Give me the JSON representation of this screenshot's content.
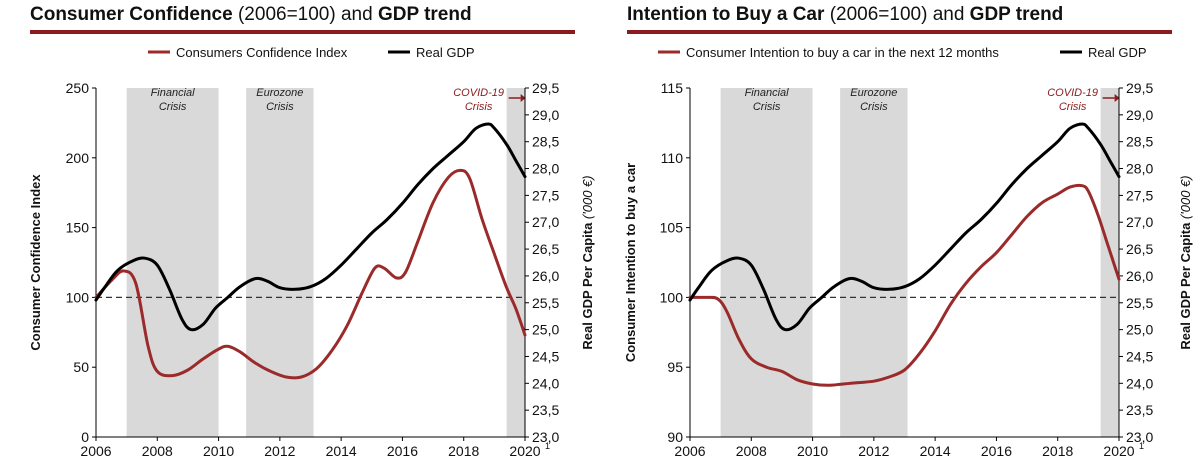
{
  "colors": {
    "accent": "#8b1c1c",
    "confidence": "#9b2a2a",
    "gdp": "#000000",
    "band": "#d9d9d9",
    "covid_text": "#8b1c1c"
  },
  "charts": [
    {
      "title_bold_1": "Consumer Confidence",
      "title_normal": "(2006=100)",
      "title_and": "and",
      "title_bold_2": "GDP trend",
      "legend": [
        "Consumers Confidence Index",
        "Real GDP"
      ]
    },
    {
      "title_bold_1": "Intention to Buy a Car",
      "title_normal": "(2006=100)",
      "title_and": "and",
      "title_bold_2": "GDP trend",
      "legend": [
        "Consumer Intention to buy a car in the next 12 months",
        "Real GDP"
      ]
    }
  ],
  "chart_data": [
    {
      "type": "line",
      "ylabel": "Consumer Confidence Index",
      "y2label": "Real GDP Per Capita",
      "y2label_unit": "('000 €)",
      "xlim": [
        2006,
        2020
      ],
      "ylim": [
        0,
        250
      ],
      "y2lim": [
        23.0,
        29.5
      ],
      "x_ticks": [
        "2006",
        "2008",
        "2010",
        "2012",
        "2014",
        "2016",
        "2018",
        "2020"
      ],
      "x_last_tick_superscript": "1",
      "y_ticks": [
        0,
        50,
        100,
        150,
        200,
        250
      ],
      "y2_ticks": [
        "23,0",
        "23,5",
        "24,0",
        "24,5",
        "25,0",
        "25,5",
        "26,0",
        "26,5",
        "27,0",
        "27,5",
        "28,0",
        "28,5",
        "29,0",
        "29,5"
      ],
      "reference_line_y": 100,
      "bands": [
        {
          "from": 2007.0,
          "to": 2010.0,
          "label": [
            "Financial",
            "Crisis"
          ]
        },
        {
          "from": 2010.9,
          "to": 2013.1,
          "label": [
            "Eurozone",
            "Crisis"
          ]
        },
        {
          "from": 2019.4,
          "to": 2020.0,
          "label": [
            "COVID-19",
            "Crisis"
          ]
        }
      ],
      "series": [
        {
          "name": "Consumers Confidence Index",
          "axis": "left",
          "points": [
            [
              2006,
              100
            ],
            [
              2006.5,
              112
            ],
            [
              2006.9,
              119
            ],
            [
              2007.3,
              110
            ],
            [
              2007.7,
              65
            ],
            [
              2008.0,
              47
            ],
            [
              2008.5,
              44
            ],
            [
              2009.0,
              48
            ],
            [
              2009.5,
              56
            ],
            [
              2010.0,
              63
            ],
            [
              2010.3,
              65
            ],
            [
              2010.7,
              61
            ],
            [
              2011.2,
              53
            ],
            [
              2011.7,
              47
            ],
            [
              2012.2,
              43
            ],
            [
              2012.7,
              43
            ],
            [
              2013.2,
              49
            ],
            [
              2013.7,
              62
            ],
            [
              2014.2,
              80
            ],
            [
              2014.7,
              104
            ],
            [
              2015.1,
              121
            ],
            [
              2015.4,
              121
            ],
            [
              2015.8,
              114
            ],
            [
              2016.1,
              118
            ],
            [
              2016.5,
              140
            ],
            [
              2017.0,
              168
            ],
            [
              2017.5,
              186
            ],
            [
              2017.9,
              191
            ],
            [
              2018.2,
              185
            ],
            [
              2018.6,
              156
            ],
            [
              2019.0,
              131
            ],
            [
              2019.4,
              107
            ],
            [
              2019.7,
              92
            ],
            [
              2020.0,
              73
            ]
          ]
        },
        {
          "name": "Real GDP",
          "axis": "right",
          "points": [
            [
              2006,
              25.55
            ],
            [
              2006.3,
              25.8
            ],
            [
              2006.7,
              26.1
            ],
            [
              2007.2,
              26.28
            ],
            [
              2007.6,
              26.33
            ],
            [
              2008.0,
              26.2
            ],
            [
              2008.4,
              25.75
            ],
            [
              2008.8,
              25.2
            ],
            [
              2009.1,
              25.0
            ],
            [
              2009.5,
              25.1
            ],
            [
              2009.9,
              25.4
            ],
            [
              2010.3,
              25.6
            ],
            [
              2010.7,
              25.8
            ],
            [
              2011.2,
              25.95
            ],
            [
              2011.6,
              25.9
            ],
            [
              2012.0,
              25.78
            ],
            [
              2012.5,
              25.75
            ],
            [
              2013.0,
              25.8
            ],
            [
              2013.5,
              25.95
            ],
            [
              2014.0,
              26.2
            ],
            [
              2014.5,
              26.5
            ],
            [
              2015.0,
              26.8
            ],
            [
              2015.5,
              27.05
            ],
            [
              2016.0,
              27.35
            ],
            [
              2016.5,
              27.7
            ],
            [
              2017.0,
              28.0
            ],
            [
              2017.5,
              28.25
            ],
            [
              2018.0,
              28.5
            ],
            [
              2018.4,
              28.75
            ],
            [
              2018.8,
              28.83
            ],
            [
              2019.0,
              28.75
            ],
            [
              2019.4,
              28.45
            ],
            [
              2019.7,
              28.15
            ],
            [
              2020.0,
              27.85
            ]
          ]
        }
      ]
    },
    {
      "type": "line",
      "ylabel": "Consumer Intention to buy a car",
      "y2label": "Real GDP Per Capita",
      "y2label_unit": "('000 €)",
      "xlim": [
        2006,
        2020
      ],
      "ylim": [
        90,
        115
      ],
      "y2lim": [
        23.0,
        29.5
      ],
      "x_ticks": [
        "2006",
        "2008",
        "2010",
        "2012",
        "2014",
        "2016",
        "2018",
        "2020"
      ],
      "x_last_tick_superscript": "1",
      "y_ticks": [
        90,
        95,
        100,
        105,
        110,
        115
      ],
      "y2_ticks": [
        "23,0",
        "23,5",
        "24,0",
        "24,5",
        "25,0",
        "25,5",
        "26,0",
        "26,5",
        "27,0",
        "27,5",
        "28,0",
        "28,5",
        "29,0",
        "29,5"
      ],
      "reference_line_y": 100,
      "bands": [
        {
          "from": 2007.0,
          "to": 2010.0,
          "label": [
            "Financial",
            "Crisis"
          ]
        },
        {
          "from": 2010.9,
          "to": 2013.1,
          "label": [
            "Eurozone",
            "Crisis"
          ]
        },
        {
          "from": 2019.4,
          "to": 2020.0,
          "label": [
            "COVID-19",
            "Crisis"
          ]
        }
      ],
      "series": [
        {
          "name": "Consumer Intention to buy a car in the next 12 months",
          "axis": "left",
          "points": [
            [
              2006,
              100.0
            ],
            [
              2006.5,
              100.0
            ],
            [
              2006.9,
              99.9
            ],
            [
              2007.2,
              99.0
            ],
            [
              2007.6,
              97.0
            ],
            [
              2008.0,
              95.6
            ],
            [
              2008.5,
              95.0
            ],
            [
              2009.0,
              94.7
            ],
            [
              2009.5,
              94.1
            ],
            [
              2010.0,
              93.8
            ],
            [
              2010.5,
              93.7
            ],
            [
              2011.0,
              93.8
            ],
            [
              2011.5,
              93.9
            ],
            [
              2012.0,
              94.0
            ],
            [
              2012.5,
              94.3
            ],
            [
              2013.0,
              94.8
            ],
            [
              2013.5,
              96.0
            ],
            [
              2014.0,
              97.6
            ],
            [
              2014.5,
              99.5
            ],
            [
              2015.0,
              101.0
            ],
            [
              2015.5,
              102.2
            ],
            [
              2016.0,
              103.2
            ],
            [
              2016.5,
              104.5
            ],
            [
              2017.0,
              105.8
            ],
            [
              2017.5,
              106.8
            ],
            [
              2018.0,
              107.4
            ],
            [
              2018.4,
              107.9
            ],
            [
              2018.8,
              108.0
            ],
            [
              2019.0,
              107.6
            ],
            [
              2019.3,
              106.0
            ],
            [
              2019.6,
              104.0
            ],
            [
              2020.0,
              101.3
            ]
          ]
        },
        {
          "name": "Real GDP",
          "axis": "right",
          "points": [
            [
              2006,
              25.55
            ],
            [
              2006.3,
              25.8
            ],
            [
              2006.7,
              26.1
            ],
            [
              2007.2,
              26.28
            ],
            [
              2007.6,
              26.33
            ],
            [
              2008.0,
              26.2
            ],
            [
              2008.4,
              25.75
            ],
            [
              2008.8,
              25.2
            ],
            [
              2009.1,
              25.0
            ],
            [
              2009.5,
              25.1
            ],
            [
              2009.9,
              25.4
            ],
            [
              2010.3,
              25.6
            ],
            [
              2010.7,
              25.8
            ],
            [
              2011.2,
              25.95
            ],
            [
              2011.6,
              25.9
            ],
            [
              2012.0,
              25.78
            ],
            [
              2012.5,
              25.75
            ],
            [
              2013.0,
              25.8
            ],
            [
              2013.5,
              25.95
            ],
            [
              2014.0,
              26.2
            ],
            [
              2014.5,
              26.5
            ],
            [
              2015.0,
              26.8
            ],
            [
              2015.5,
              27.05
            ],
            [
              2016.0,
              27.35
            ],
            [
              2016.5,
              27.7
            ],
            [
              2017.0,
              28.0
            ],
            [
              2017.5,
              28.25
            ],
            [
              2018.0,
              28.5
            ],
            [
              2018.4,
              28.75
            ],
            [
              2018.8,
              28.83
            ],
            [
              2019.0,
              28.75
            ],
            [
              2019.4,
              28.45
            ],
            [
              2019.7,
              28.15
            ],
            [
              2020.0,
              27.85
            ]
          ]
        }
      ]
    }
  ]
}
